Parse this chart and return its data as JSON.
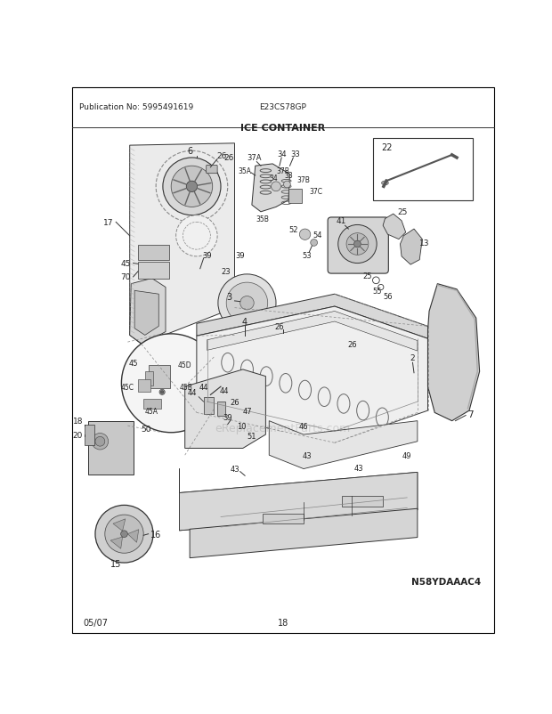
{
  "title": "ICE CONTAINER",
  "pub_no": "Publication No: 5995491619",
  "model": "E23CS78GP",
  "diagram_code": "N58YDAAAC4",
  "date": "05/07",
  "page": "18",
  "bg": "#ffffff",
  "fg": "#222222",
  "lc": "#333333",
  "gray1": "#bbbbbb",
  "gray2": "#dedede",
  "gray3": "#aaaaaa"
}
